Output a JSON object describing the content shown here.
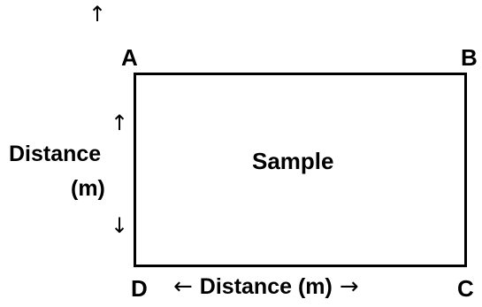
{
  "diagram": {
    "top_arrow": "↑",
    "corners": {
      "a": "A",
      "b": "B",
      "c": "C",
      "d": "D"
    },
    "box_label": "Sample",
    "vertical_axis": {
      "up_arrow": "↑",
      "label_line1": "Distance",
      "label_line2": "(m)",
      "down_arrow": "↓"
    },
    "horizontal_axis": {
      "left_arrow": "←",
      "label": "Distance (m)",
      "right_arrow": "→"
    }
  }
}
